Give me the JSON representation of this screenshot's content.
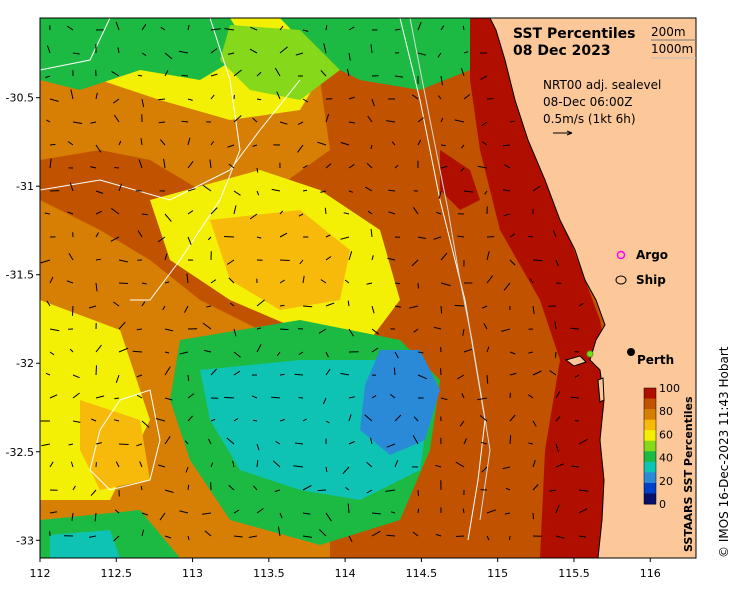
{
  "title": "SST Percentiles",
  "date": "08 Dec 2023",
  "depth_contours": [
    "200m",
    "1000m"
  ],
  "current_source": "NRT00 adj. sealevel",
  "current_time": "08-Dec 06:00Z",
  "vector_scale": "0.5m/s (1kt 6h)",
  "legend": {
    "argo": "Argo",
    "ship": "Ship"
  },
  "place": {
    "name": "Perth",
    "lon": 115.86,
    "lat": -31.95
  },
  "colorbar": {
    "title": "SSTAARS SST Percentiles",
    "ticks": [
      "0",
      "20",
      "40",
      "60",
      "80",
      "100"
    ],
    "colors": [
      "#08106b",
      "#0040c8",
      "#2a8ad8",
      "#0ec3b4",
      "#1cba43",
      "#86d81a",
      "#f3f006",
      "#f7ba0a",
      "#d77f04",
      "#c05200",
      "#b00f00"
    ]
  },
  "credit": "© IMOS 16-Dec-2023 11:43 Hobart",
  "axes": {
    "x_ticks": [
      "112",
      "112.5",
      "113",
      "113.5",
      "114",
      "114.5",
      "115",
      "115.5",
      "116"
    ],
    "y_ticks": [
      "-30.5",
      "-31",
      "-31.5",
      "-32",
      "-32.5",
      "-33"
    ],
    "xlim": [
      112,
      116.3
    ],
    "ylim": [
      -33.1,
      -30.05
    ]
  },
  "colors": {
    "land": "#fcc89a",
    "coastline": "#000000",
    "contour": "#ffffff"
  }
}
